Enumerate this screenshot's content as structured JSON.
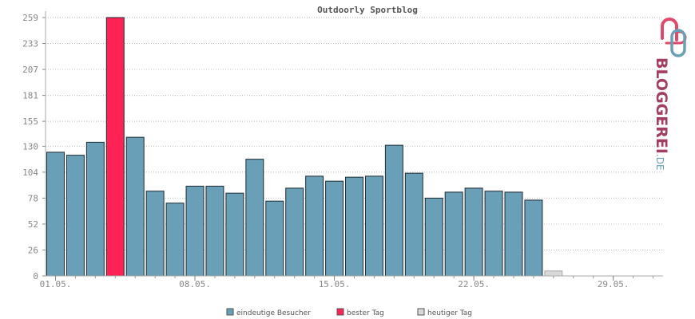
{
  "chart_data": {
    "type": "bar",
    "title": "Outdoorly Sportblog",
    "xlabel": "",
    "ylabel": "",
    "ylim": [
      0,
      265
    ],
    "yticks": [
      0,
      26,
      52,
      78,
      104,
      130,
      155,
      181,
      207,
      233,
      259
    ],
    "x_tick_labels": [
      {
        "label": "01.05.",
        "day": 1
      },
      {
        "label": "08.05.",
        "day": 8
      },
      {
        "label": "15.05.",
        "day": 15
      },
      {
        "label": "22.05.",
        "day": 22
      },
      {
        "label": "29.05.",
        "day": 29
      }
    ],
    "days_in_range": 31,
    "grid": true,
    "legend_position": "bottom",
    "series": [
      {
        "name": "eindeutige Besucher",
        "color": "#6a9fb8",
        "days": [
          1,
          2,
          3,
          5,
          6,
          7,
          8,
          9,
          10,
          11,
          12,
          13,
          14,
          15,
          16,
          17,
          18,
          19,
          20,
          21,
          22,
          23,
          24,
          25
        ],
        "values": [
          124,
          121,
          134,
          139,
          85,
          73,
          90,
          90,
          83,
          117,
          75,
          88,
          100,
          95,
          99,
          100,
          131,
          103,
          78,
          84,
          88,
          85,
          84,
          76
        ]
      },
      {
        "name": "bester Tag",
        "color": "#ff2255",
        "days": [
          4
        ],
        "values": [
          259
        ]
      },
      {
        "name": "heutiger Tag",
        "color": "#d8d8d8",
        "days": [
          26
        ],
        "values": [
          5
        ]
      }
    ]
  },
  "logo": {
    "text": "BLOGGEREI",
    "suffix": ".DE"
  }
}
